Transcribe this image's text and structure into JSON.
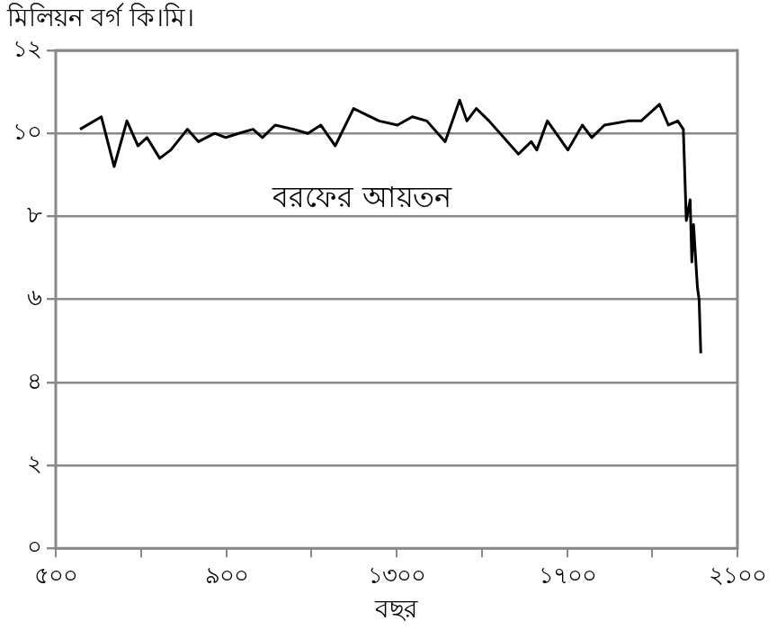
{
  "chart_data": {
    "type": "line",
    "ylabel": "মিলিয়ন বর্গ কি।মি।",
    "xlabel": "বছর",
    "annotations": [
      "বরফের আয়তন"
    ],
    "xlim": [
      500,
      2100
    ],
    "xticks": [
      {
        "value": 500,
        "label": "৫০০"
      },
      {
        "value": 700,
        "label": null
      },
      {
        "value": 900,
        "label": "৯০০"
      },
      {
        "value": 1100,
        "label": null
      },
      {
        "value": 1300,
        "label": "১৩০০"
      },
      {
        "value": 1500,
        "label": null
      },
      {
        "value": 1700,
        "label": "১৭০০"
      },
      {
        "value": 1900,
        "label": null
      },
      {
        "value": 2100,
        "label": "২১০০"
      }
    ],
    "ylim": [
      0,
      12
    ],
    "yticks": [
      {
        "value": 0,
        "label": "০"
      },
      {
        "value": 2,
        "label": "২"
      },
      {
        "value": 4,
        "label": "৪"
      },
      {
        "value": 6,
        "label": "৬"
      },
      {
        "value": 8,
        "label": "৮"
      },
      {
        "value": 10,
        "label": "১০"
      },
      {
        "value": 12,
        "label": "১২"
      }
    ],
    "grid": "y",
    "marker": "none",
    "line_style": "solid",
    "series": [
      {
        "color": "#000000",
        "x": [
          557,
          607,
          637,
          667,
          693,
          714,
          744,
          770,
          809,
          835,
          873,
          899,
          929,
          963,
          985,
          1015,
          1058,
          1092,
          1122,
          1156,
          1199,
          1259,
          1302,
          1337,
          1371,
          1414,
          1448,
          1465,
          1487,
          1517,
          1586,
          1616,
          1629,
          1654,
          1702,
          1736,
          1758,
          1788,
          1844,
          1874,
          1917,
          1938,
          1960,
          1973,
          1980,
          1989,
          1993,
          1997,
          2006,
          2010,
          2014
        ],
        "values": [
          10.1,
          10.4,
          9.2,
          10.3,
          9.7,
          9.9,
          9.4,
          9.6,
          10.1,
          9.8,
          10.0,
          9.9,
          10.0,
          10.1,
          9.9,
          10.2,
          10.1,
          10.0,
          10.2,
          9.7,
          10.6,
          10.3,
          10.2,
          10.4,
          10.3,
          9.8,
          10.8,
          10.3,
          10.6,
          10.3,
          9.5,
          9.8,
          9.6,
          10.3,
          9.6,
          10.2,
          9.9,
          10.2,
          10.3,
          10.3,
          10.7,
          10.2,
          10.3,
          10.1,
          7.9,
          8.4,
          6.9,
          7.8,
          6.3,
          6.0,
          4.7
        ]
      }
    ]
  }
}
